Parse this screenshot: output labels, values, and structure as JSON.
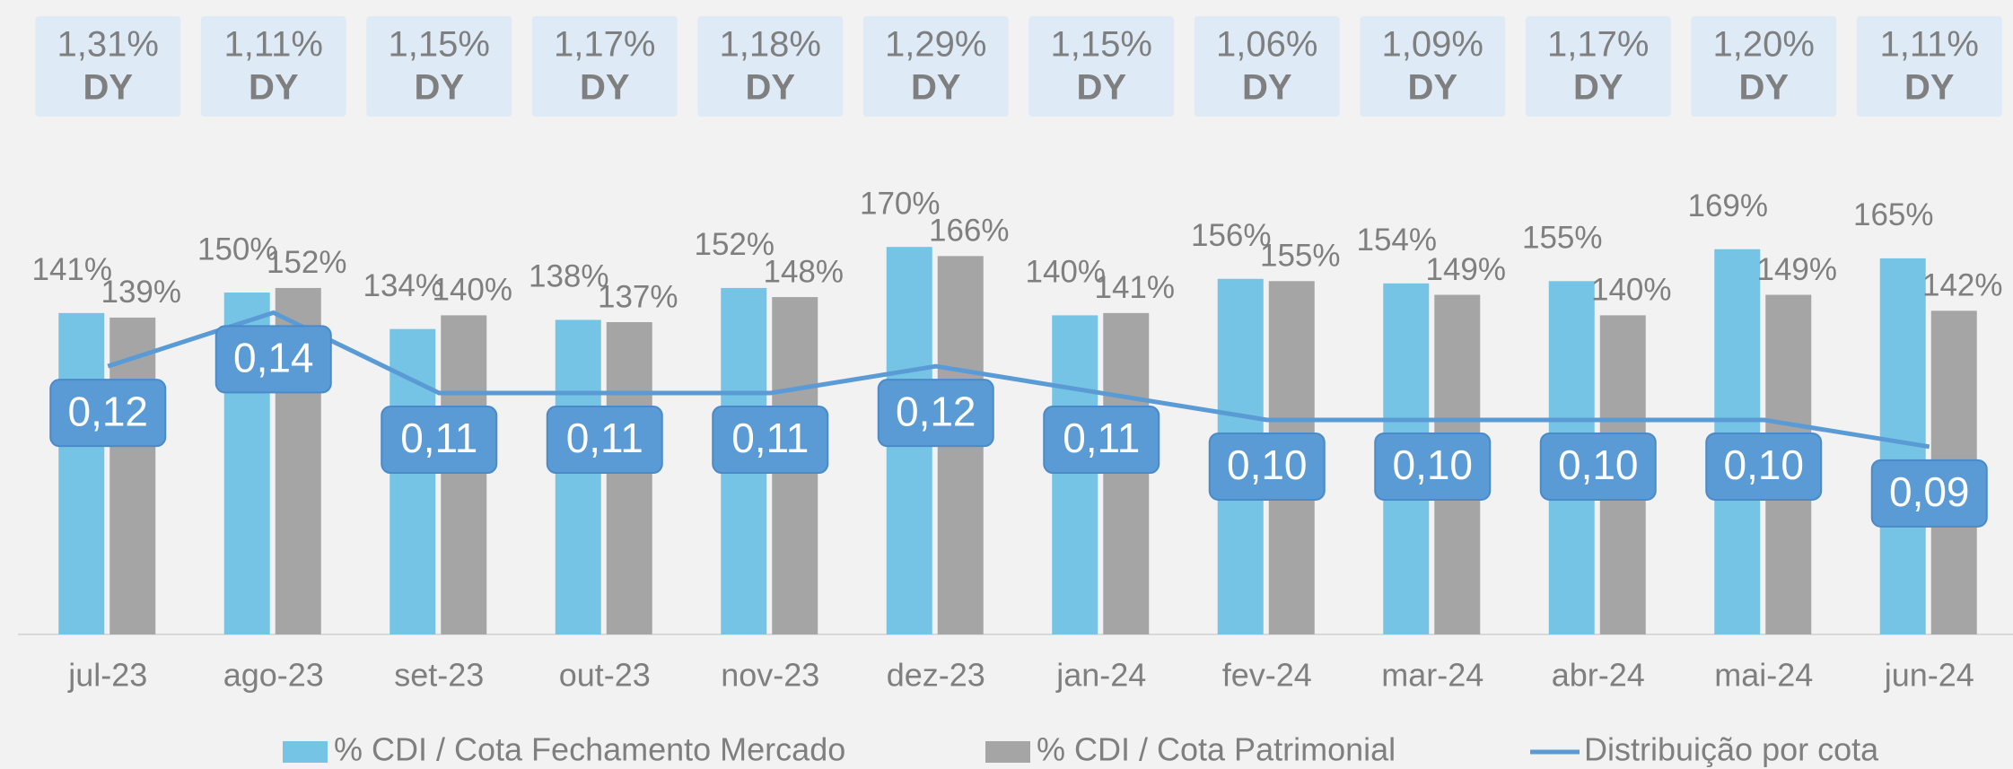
{
  "chart_data": {
    "type": "bar",
    "categories": [
      "jul-23",
      "ago-23",
      "set-23",
      "out-23",
      "nov-23",
      "dez-23",
      "jan-24",
      "fev-24",
      "mar-24",
      "abr-24",
      "mai-24",
      "jun-24"
    ],
    "dy": {
      "label": "DY",
      "values": [
        1.31,
        1.11,
        1.15,
        1.17,
        1.18,
        1.29,
        1.15,
        1.06,
        1.09,
        1.17,
        1.2,
        1.11
      ],
      "value_labels": [
        "1,31%",
        "1,11%",
        "1,15%",
        "1,17%",
        "1,18%",
        "1,29%",
        "1,15%",
        "1,06%",
        "1,09%",
        "1,17%",
        "1,20%",
        "1,11%"
      ]
    },
    "series": [
      {
        "name": "% CDI / Cota Fechamento Mercado",
        "type": "bar",
        "color": "#75c4e5",
        "values": [
          141,
          150,
          134,
          138,
          152,
          170,
          140,
          156,
          154,
          155,
          169,
          165
        ],
        "value_labels": [
          "141%",
          "150%",
          "134%",
          "138%",
          "152%",
          "170%",
          "140%",
          "156%",
          "154%",
          "155%",
          "169%",
          "165%"
        ]
      },
      {
        "name": "% CDI / Cota Patrimonial",
        "type": "bar",
        "color": "#a5a5a5",
        "values": [
          139,
          152,
          140,
          137,
          148,
          166,
          141,
          155,
          149,
          140,
          149,
          142
        ],
        "value_labels": [
          "139%",
          "152%",
          "140%",
          "137%",
          "148%",
          "166%",
          "141%",
          "155%",
          "149%",
          "140%",
          "149%",
          "142%"
        ]
      },
      {
        "name": "Distribuição por cota",
        "type": "line",
        "axis": "y2",
        "color": "#5b9bd5",
        "values": [
          0.12,
          0.14,
          0.11,
          0.11,
          0.11,
          0.12,
          0.11,
          0.1,
          0.1,
          0.1,
          0.1,
          0.09
        ],
        "value_labels": [
          "0,12",
          "0,14",
          "0,11",
          "0,11",
          "0,11",
          "0,12",
          "0,11",
          "0,10",
          "0,10",
          "0,10",
          "0,10",
          "0,09"
        ]
      }
    ],
    "ylim": [
      0,
      200
    ],
    "y2lim": [
      0.02,
      0.19
    ],
    "grid": false
  }
}
